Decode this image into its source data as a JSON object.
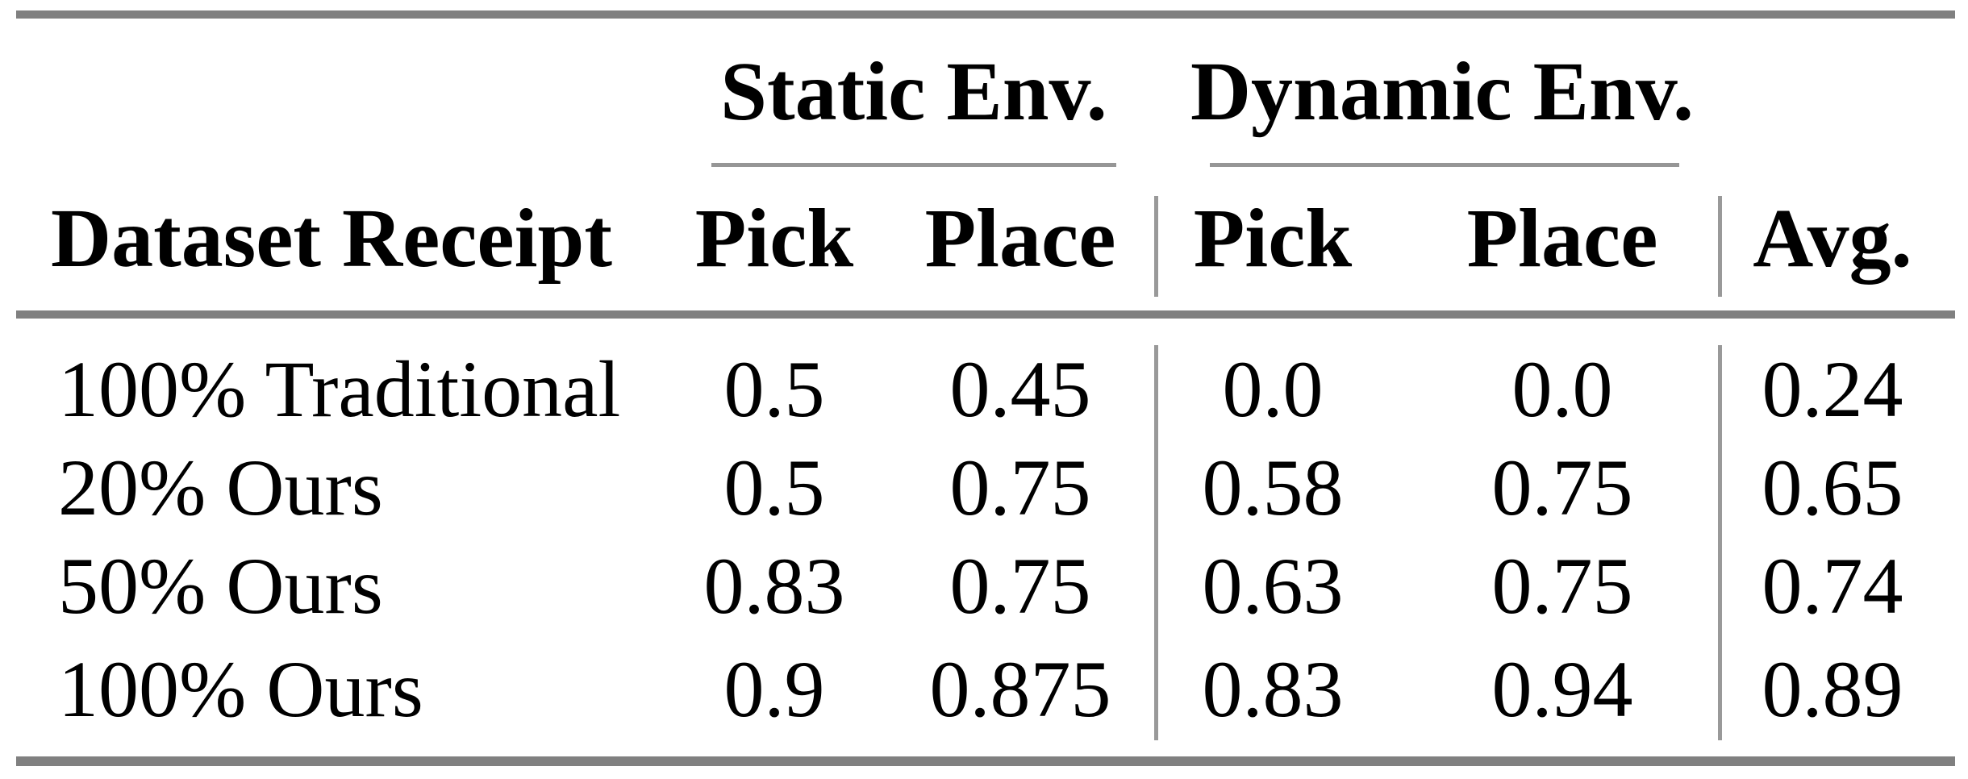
{
  "table": {
    "column_groups": [
      {
        "label": "Static Env."
      },
      {
        "label": "Dynamic Env."
      }
    ],
    "headers": {
      "row_label": "Dataset Receipt",
      "static_pick": "Pick",
      "static_place": "Place",
      "dynamic_pick": "Pick",
      "dynamic_place": "Place",
      "avg": "Avg."
    },
    "rows": [
      {
        "cells": [
          "100% Traditional",
          "0.5",
          "0.45",
          "0.0",
          "0.0",
          "0.24"
        ]
      },
      {
        "cells": [
          "20% Ours",
          "0.5",
          "0.75",
          "0.58",
          "0.75",
          "0.65"
        ]
      },
      {
        "cells": [
          "50% Ours",
          "0.83",
          "0.75",
          "0.63",
          "0.75",
          "0.74"
        ]
      },
      {
        "cells": [
          "100% Ours",
          "0.9",
          "0.875",
          "0.83",
          "0.94",
          "0.89"
        ]
      }
    ]
  },
  "chart_data": {
    "type": "table",
    "title": "",
    "column_groups": [
      "Static Env.",
      "Dynamic Env."
    ],
    "columns": [
      "Dataset Receipt",
      "Static Pick",
      "Static Place",
      "Dynamic Pick",
      "Dynamic Place",
      "Avg."
    ],
    "rows": [
      [
        "100% Traditional",
        0.5,
        0.45,
        0.0,
        0.0,
        0.24
      ],
      [
        "20% Ours",
        0.5,
        0.75,
        0.58,
        0.75,
        0.65
      ],
      [
        "50% Ours",
        0.83,
        0.75,
        0.63,
        0.75,
        0.74
      ],
      [
        "100% Ours",
        0.9,
        0.875,
        0.83,
        0.94,
        0.89
      ]
    ]
  },
  "colors": {
    "thick_rule": "#808080",
    "thin_rule": "#969696",
    "text": "#000000",
    "background": "#ffffff"
  }
}
